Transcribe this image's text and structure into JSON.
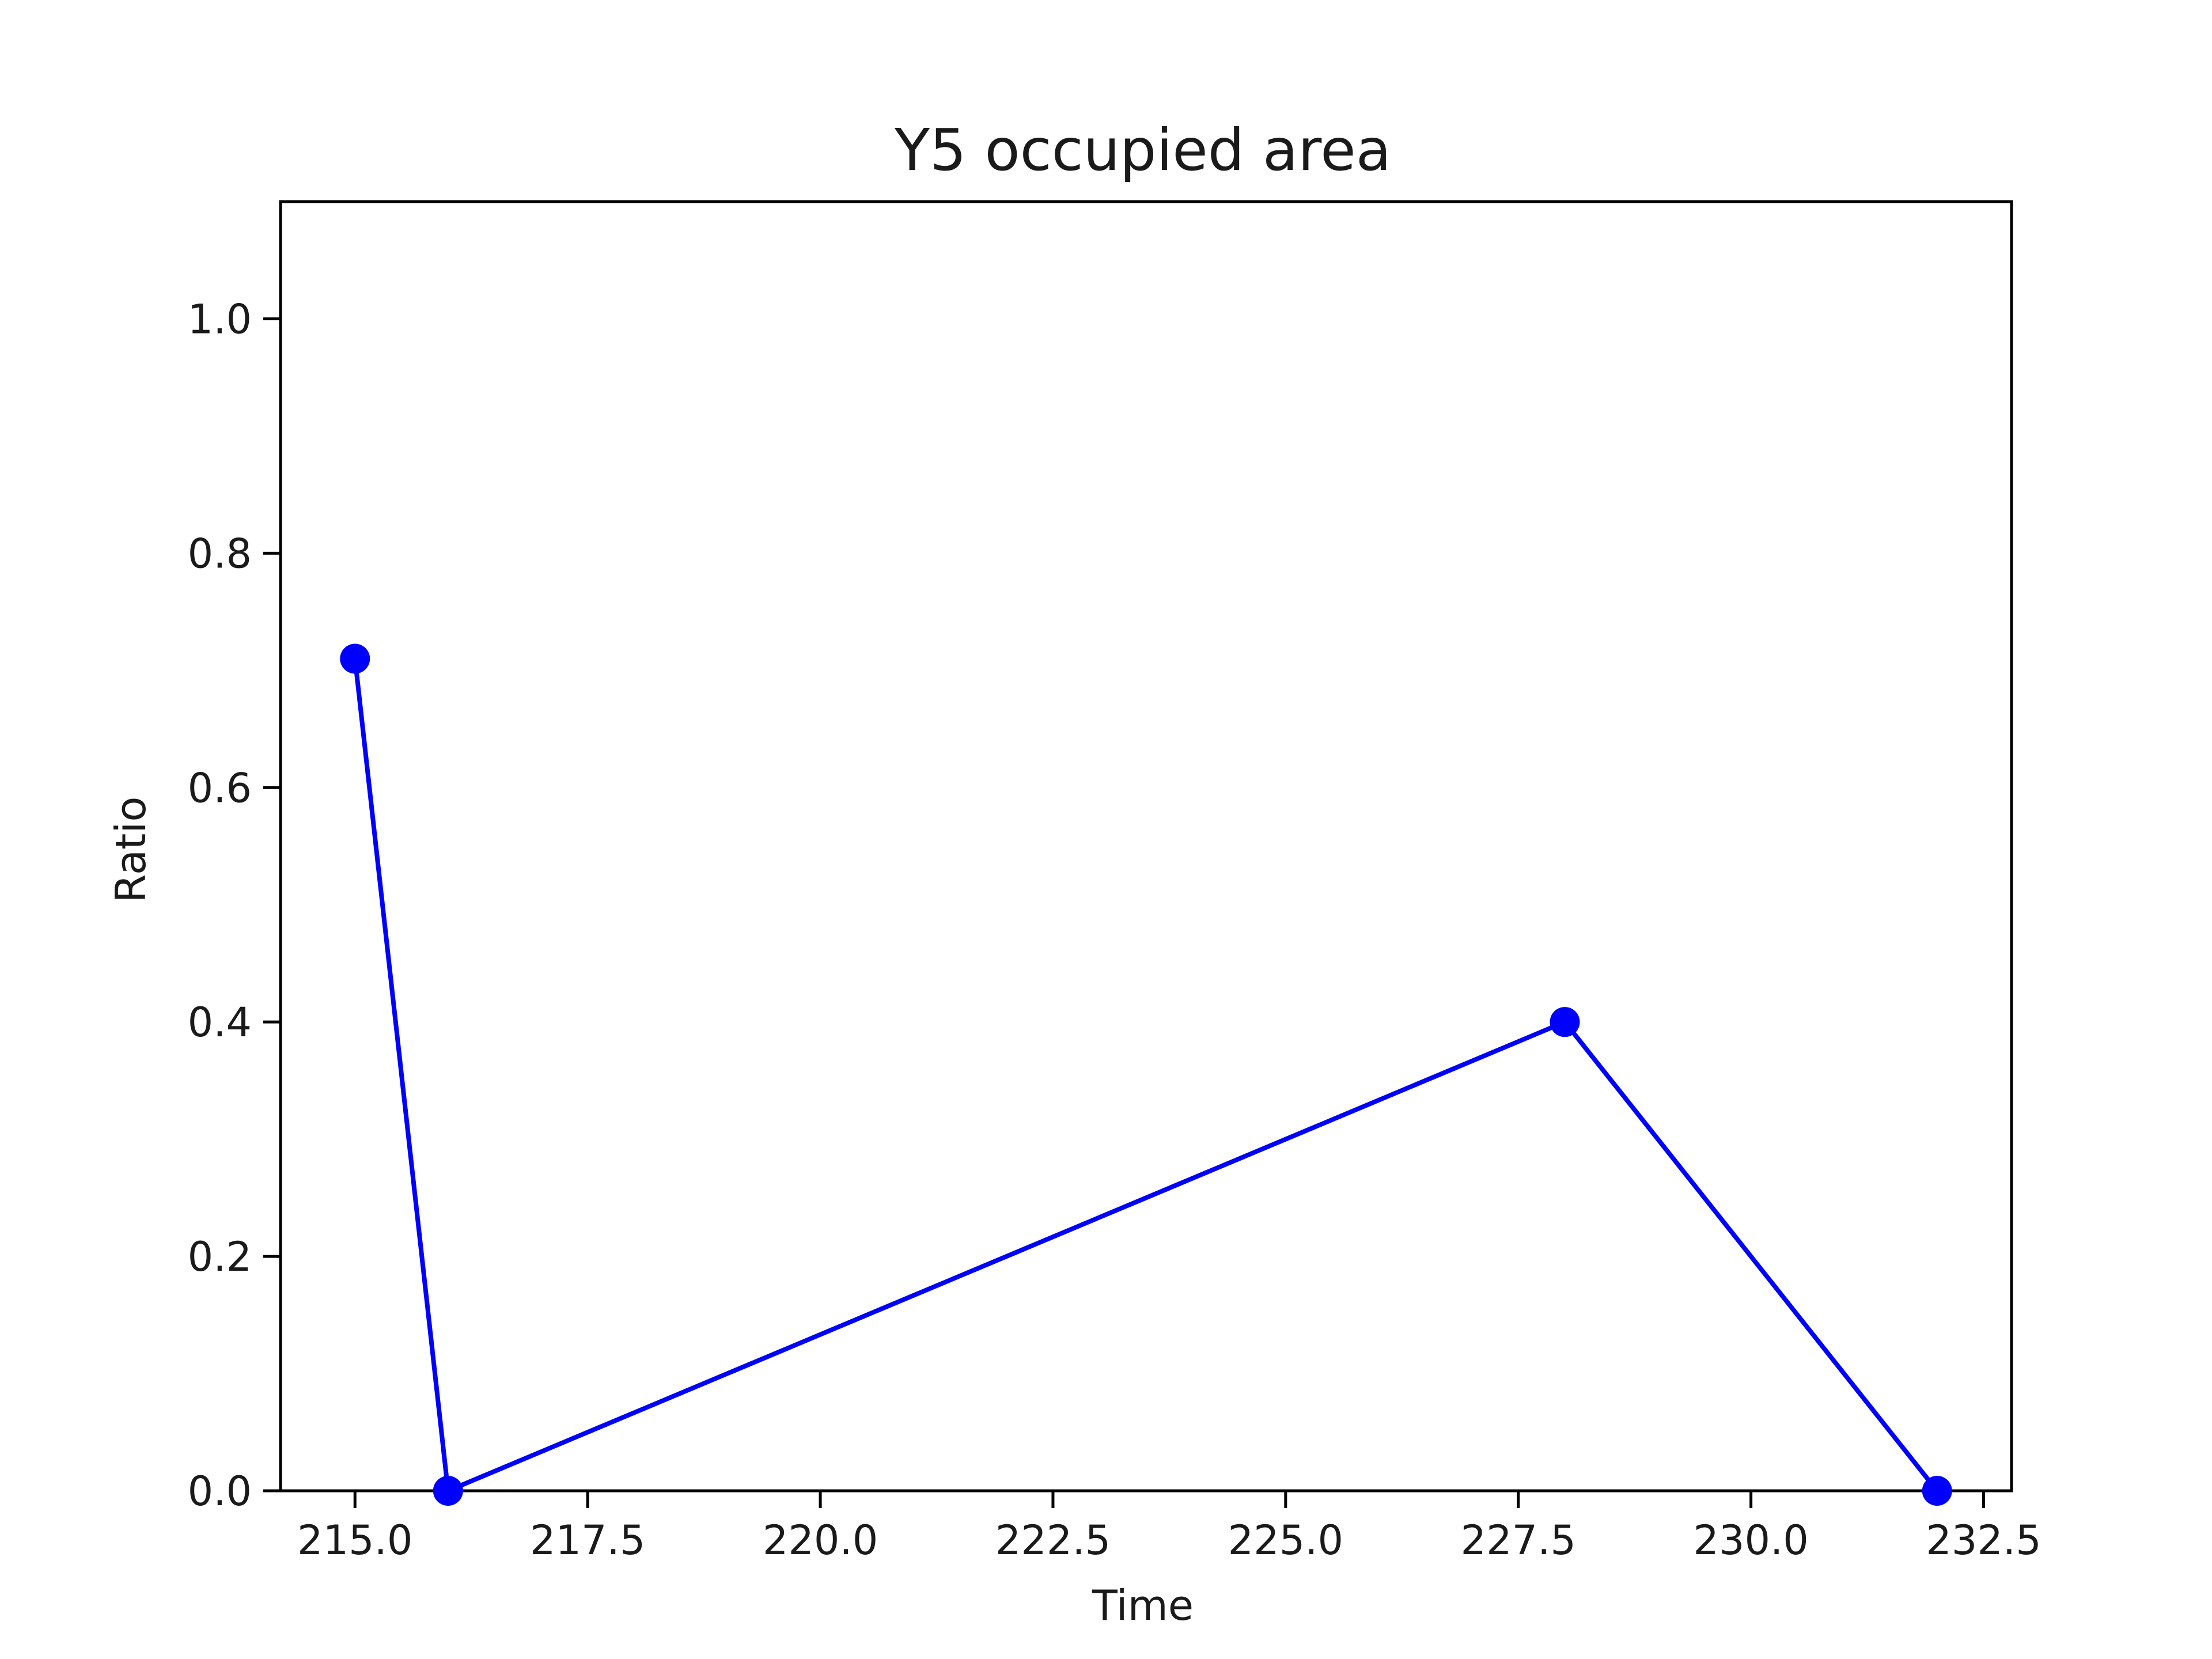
{
  "chart_data": {
    "type": "line",
    "title": "Y5 occupied area",
    "xlabel": "Time",
    "ylabel": "Ratio",
    "xlim": [
      214.2,
      232.8
    ],
    "ylim": [
      0.0,
      1.1
    ],
    "x_ticks": [
      215.0,
      217.5,
      220.0,
      222.5,
      225.0,
      227.5,
      230.0,
      232.5
    ],
    "x_tick_labels": [
      "215.0",
      "217.5",
      "220.0",
      "222.5",
      "225.0",
      "227.5",
      "230.0",
      "232.5"
    ],
    "y_ticks": [
      0.0,
      0.2,
      0.4,
      0.6,
      0.8,
      1.0
    ],
    "y_tick_labels": [
      "0.0",
      "0.2",
      "0.4",
      "0.6",
      "0.8",
      "1.0"
    ],
    "grid": false,
    "series": [
      {
        "color": "#0000ff",
        "marker": "circle",
        "x": [
          215,
          216,
          228,
          232
        ],
        "y": [
          0.71,
          0.0,
          0.4,
          0.0
        ]
      }
    ]
  }
}
